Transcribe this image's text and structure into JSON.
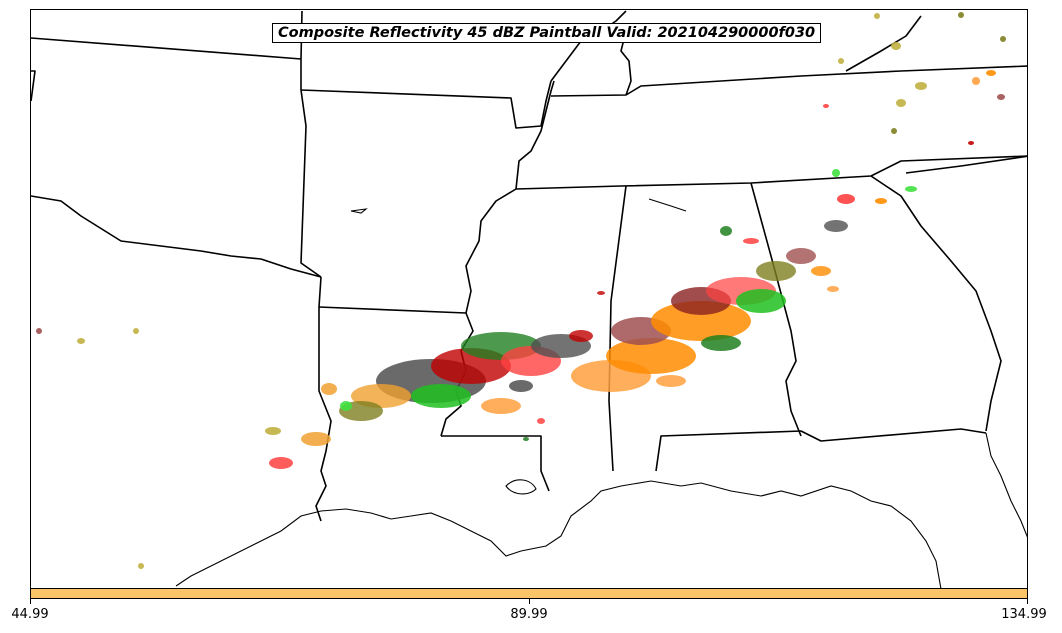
{
  "title": "Composite Reflectivity 45 dBZ Paintball Valid: 202104290000f030",
  "colorbar": {
    "color": "#fcc468",
    "ticks": [
      "44.99",
      "89.99",
      "134.99"
    ]
  },
  "map": {
    "region": "Southern United States",
    "paintball_colors": [
      "#ff4040",
      "#c00000",
      "#8b2020",
      "#a05050",
      "#ff8c00",
      "#ffa040",
      "#f0a030",
      "#20c020",
      "#40e040",
      "#208020",
      "#505050",
      "#808020",
      "#c0b040"
    ]
  }
}
